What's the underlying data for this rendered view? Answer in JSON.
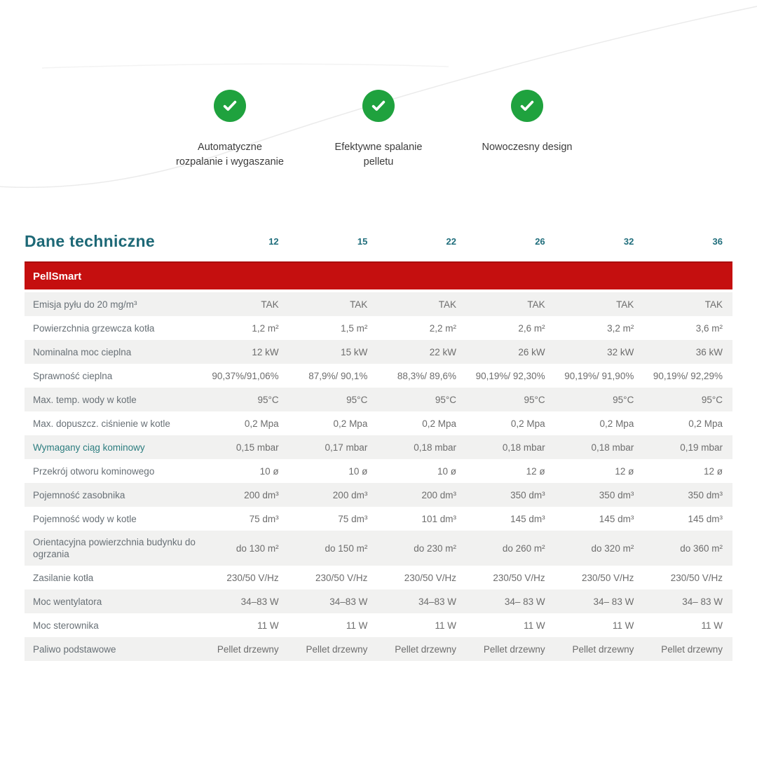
{
  "features": [
    {
      "label": "Automatyczne\nrozpalanie i wygaszanie",
      "icon": "checkmark-circle"
    },
    {
      "label": "Efektywne spalanie\npelletu",
      "icon": "checkmark-circle"
    },
    {
      "label": "Nowoczesny design",
      "icon": "checkmark-circle"
    }
  ],
  "table": {
    "title": "Dane techniczne",
    "columns": [
      "12",
      "15",
      "22",
      "26",
      "32",
      "36"
    ],
    "product_band": "PellSmart",
    "rows": [
      {
        "label": "Emisja pyłu do 20 mg/m³",
        "values": [
          "TAK",
          "TAK",
          "TAK",
          "TAK",
          "TAK",
          "TAK"
        ]
      },
      {
        "label": "Powierzchnia grzewcza kotła",
        "values": [
          "1,2 m²",
          "1,5 m²",
          "2,2 m²",
          "2,6 m²",
          "3,2 m²",
          "3,6 m²"
        ]
      },
      {
        "label": "Nominalna moc cieplna",
        "values": [
          "12 kW",
          "15 kW",
          "22 kW",
          "26 kW",
          "32 kW",
          "36 kW"
        ]
      },
      {
        "label": "Sprawność cieplna",
        "values": [
          "90,37%/91,06%",
          "87,9%/ 90,1%",
          "88,3%/ 89,6%",
          "90,19%/ 92,30%",
          "90,19%/ 91,90%",
          "90,19%/ 92,29%"
        ]
      },
      {
        "label": "Max. temp. wody w kotle",
        "values": [
          "95°C",
          "95°C",
          "95°C",
          "95°C",
          "95°C",
          "95°C"
        ]
      },
      {
        "label": "Max. dopuszcz. ciśnienie w kotle",
        "values": [
          "0,2 Mpa",
          "0,2 Mpa",
          "0,2 Mpa",
          "0,2 Mpa",
          "0,2 Mpa",
          "0,2 Mpa"
        ]
      },
      {
        "label": "Wymagany ciąg kominowy",
        "teal": true,
        "values": [
          "0,15 mbar",
          "0,17 mbar",
          "0,18 mbar",
          "0,18 mbar",
          "0,18 mbar",
          "0,19 mbar"
        ]
      },
      {
        "label": "Przekrój otworu kominowego",
        "values": [
          "10 ø",
          "10 ø",
          "10 ø",
          "12 ø",
          "12 ø",
          "12 ø"
        ]
      },
      {
        "label": "Pojemność zasobnika",
        "values": [
          "200 dm³",
          "200 dm³",
          "200 dm³",
          "350 dm³",
          "350 dm³",
          "350 dm³"
        ]
      },
      {
        "label": "Pojemność wody w kotle",
        "values": [
          "75 dm³",
          "75 dm³",
          "101 dm³",
          "145 dm³",
          "145 dm³",
          "145 dm³"
        ]
      },
      {
        "label": "Orientacyjna powierzchnia budynku do ogrzania",
        "twoLine": true,
        "values": [
          "do 130 m²",
          "do 150 m²",
          "do 230 m²",
          "do 260 m²",
          "do 320 m²",
          "do 360 m²"
        ]
      },
      {
        "label": "Zasilanie kotła",
        "values": [
          "230/50 V/Hz",
          "230/50 V/Hz",
          "230/50 V/Hz",
          "230/50 V/Hz",
          "230/50 V/Hz",
          "230/50 V/Hz"
        ]
      },
      {
        "label": "Moc wentylatora",
        "values": [
          "34–83 W",
          "34–83 W",
          "34–83 W",
          "34– 83 W",
          "34– 83 W",
          "34– 83 W"
        ]
      },
      {
        "label": "Moc sterownika",
        "values": [
          "11 W",
          "11 W",
          "11 W",
          "11 W",
          "11 W",
          "11 W"
        ]
      },
      {
        "label": "Paliwo podstawowe",
        "values": [
          "Pellet drzewny",
          "Pellet drzewny",
          "Pellet drzewny",
          "Pellet drzewny",
          "Pellet drzewny",
          "Pellet drzewny"
        ]
      }
    ]
  },
  "colors": {
    "accent_teal": "#1d6876",
    "brand_red": "#c50f0f",
    "check_green": "#1fa23e",
    "row_shade_gray": "#f1f1f0",
    "label_gray": "#687076",
    "teal_row_label": "#2c7d7f"
  }
}
